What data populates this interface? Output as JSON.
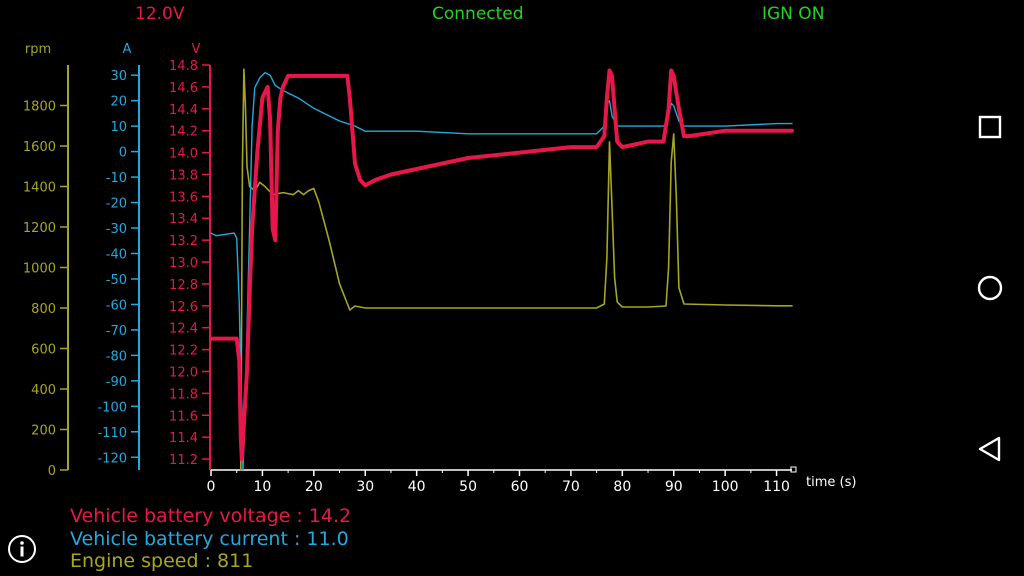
{
  "status": {
    "voltage": "12.0V",
    "connection": "Connected",
    "ignition": "IGN ON"
  },
  "readouts": {
    "voltage": "Vehicle battery voltage : 14.2",
    "current": "Vehicle battery current : 11.0",
    "speed": "Engine speed : 811"
  },
  "nav_icons": [
    "square-icon",
    "circle-icon",
    "triangle-back-icon"
  ],
  "colors": {
    "voltage": "#e8174a",
    "current": "#22a9dd",
    "rpm": "#a7a523",
    "axis": "#ffffff"
  },
  "chart_data": {
    "type": "line",
    "xlabel": "time (s)",
    "xlim": [
      0,
      113
    ],
    "xticks": [
      0,
      10,
      20,
      30,
      40,
      50,
      60,
      70,
      80,
      90,
      100,
      110
    ],
    "axes": [
      {
        "id": "rpm",
        "label": "rpm",
        "ylim": [
          0,
          2000
        ],
        "ticks": [
          0,
          200,
          400,
          600,
          800,
          1000,
          1200,
          1400,
          1600,
          1800
        ],
        "tick_labels": [
          "0",
          "200",
          "400",
          "600",
          "800",
          "1000",
          "1200",
          "1400",
          "1600",
          "1800"
        ]
      },
      {
        "id": "current",
        "label": "A",
        "ylim": [
          -125,
          34
        ],
        "ticks": [
          -120,
          -110,
          -100,
          -90,
          -80,
          -70,
          -60,
          -50,
          -40,
          -30,
          -20,
          -10,
          0,
          10,
          20,
          30
        ],
        "tick_labels": [
          "-120",
          "-110",
          "-100",
          "-90",
          "-80",
          "-70",
          "-60",
          "-50",
          "-40",
          "-30",
          "-20",
          "-10",
          "0",
          "10",
          "20",
          "30"
        ]
      },
      {
        "id": "voltage",
        "label": "V",
        "ylim": [
          11.1,
          14.8
        ],
        "ticks": [
          11.2,
          11.4,
          11.6,
          11.8,
          12.0,
          12.2,
          12.4,
          12.6,
          12.8,
          13.0,
          13.2,
          13.4,
          13.6,
          13.8,
          14.0,
          14.2,
          14.4,
          14.6,
          14.8
        ],
        "tick_labels": [
          "11.2",
          "11.4",
          "11.6",
          "11.8",
          "12.0",
          "12.2",
          "12.4",
          "12.6",
          "12.8",
          "13.0",
          "13.2",
          "13.4",
          "13.6",
          "13.8",
          "14.0",
          "14.2",
          "14.4",
          "14.6",
          "14.8"
        ]
      }
    ],
    "series": [
      {
        "axis": "rpm",
        "x": [
          5.8,
          6.1,
          6.4,
          6.7,
          7.0,
          7.5,
          8.5,
          9.5,
          10.5,
          12.0,
          14.0,
          16.0,
          17.0,
          18.0,
          19.0,
          20.0,
          21.0,
          23.0,
          25.0,
          27.0,
          28.0,
          30.0,
          40.0,
          50.0,
          60.0,
          70.0,
          75.0,
          76.5,
          77.0,
          77.5,
          78.0,
          78.5,
          79.0,
          80.0,
          85.0,
          88.5,
          89.0,
          89.5,
          90.0,
          90.5,
          91.0,
          92.0,
          100.0,
          110.0,
          113.0
        ],
        "y": [
          0,
          1500,
          1980,
          1800,
          1500,
          1400,
          1380,
          1420,
          1400,
          1360,
          1370,
          1360,
          1380,
          1360,
          1380,
          1390,
          1320,
          1130,
          920,
          790,
          810,
          800,
          800,
          800,
          800,
          800,
          800,
          820,
          1050,
          1620,
          1300,
          950,
          830,
          805,
          805,
          810,
          1000,
          1520,
          1660,
          1350,
          900,
          820,
          815,
          811,
          811
        ]
      },
      {
        "axis": "current",
        "x": [
          0,
          1,
          4.5,
          5,
          5.5,
          5.8,
          6.0,
          6.2,
          6.5,
          7.0,
          7.5,
          8.0,
          8.5,
          9.5,
          10.5,
          11.5,
          12.5,
          14.0,
          17.0,
          20.0,
          25.0,
          28.0,
          30.0,
          40.0,
          50.0,
          60.0,
          70.0,
          75.0,
          76.5,
          77.0,
          77.5,
          78.0,
          79.0,
          80.0,
          85.0,
          88.5,
          89.0,
          89.5,
          90.0,
          91.0,
          92.0,
          100.0,
          110.0,
          113.0
        ],
        "y": [
          -32,
          -33,
          -32,
          -34,
          -60,
          -90,
          -100,
          -125,
          -112,
          -70,
          -30,
          10,
          25,
          29,
          31,
          30,
          26,
          24,
          21,
          17,
          12,
          10,
          8,
          8,
          7,
          7,
          7,
          7,
          10,
          19,
          20,
          14,
          10,
          10,
          10,
          10,
          14,
          19,
          18,
          12,
          10,
          10,
          11,
          11
        ]
      },
      {
        "axis": "voltage",
        "x": [
          0,
          5.0,
          5.5,
          5.8,
          6.0,
          6.5,
          7.0,
          7.5,
          8.0,
          9.0,
          10.0,
          11.0,
          11.5,
          12.0,
          12.5,
          13.0,
          13.5,
          14.0,
          15.0,
          20.0,
          25.0,
          26.5,
          27.0,
          27.5,
          28.0,
          29.0,
          30.0,
          32.0,
          35.0,
          40.0,
          50.0,
          60.0,
          70.0,
          75.0,
          76.5,
          77.0,
          77.5,
          78.0,
          78.5,
          79.0,
          80.0,
          85.0,
          88.0,
          89.0,
          89.5,
          90.0,
          91.0,
          92.0,
          93.0,
          100.0,
          105.0,
          113.0
        ],
        "y": [
          12.3,
          12.3,
          12.1,
          11.4,
          11.2,
          11.6,
          12.0,
          12.7,
          13.3,
          14.0,
          14.5,
          14.6,
          14.3,
          13.3,
          13.2,
          14.2,
          14.5,
          14.6,
          14.7,
          14.7,
          14.7,
          14.7,
          14.5,
          14.2,
          13.9,
          13.75,
          13.7,
          13.75,
          13.8,
          13.85,
          13.95,
          14.0,
          14.05,
          14.05,
          14.15,
          14.5,
          14.75,
          14.7,
          14.4,
          14.1,
          14.05,
          14.1,
          14.1,
          14.4,
          14.75,
          14.7,
          14.4,
          14.15,
          14.15,
          14.2,
          14.2,
          14.2
        ]
      }
    ]
  }
}
